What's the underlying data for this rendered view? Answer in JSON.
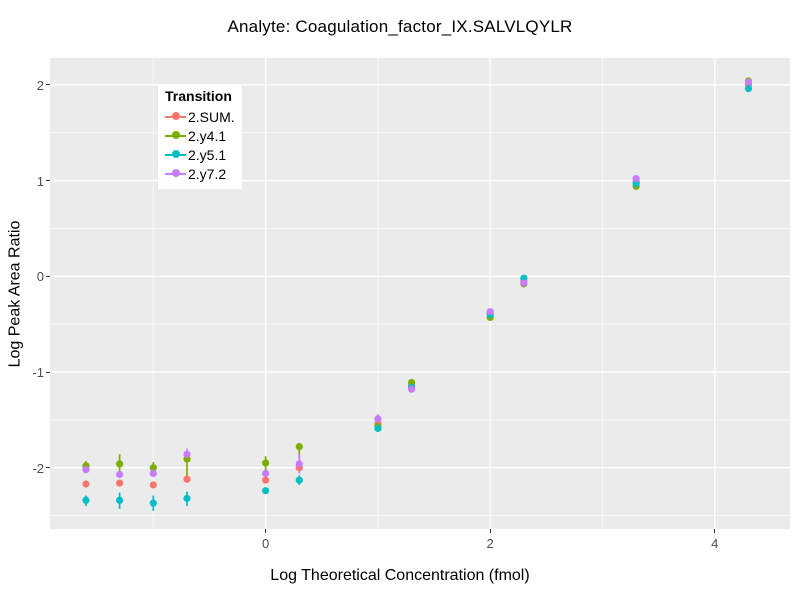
{
  "chart_data": {
    "type": "scatter",
    "title": "Analyte: Coagulation_factor_IX.SALVLQYLR",
    "xlabel": "Log Theoretical Concentration (fmol)",
    "ylabel": "Log Peak Area Ratio",
    "xlim": [
      -1.92,
      4.67
    ],
    "ylim": [
      -2.64,
      2.28
    ],
    "x_ticks": [
      0,
      2,
      4
    ],
    "y_ticks": [
      -2,
      -1,
      0,
      1,
      2
    ],
    "x_minor_ticks": [
      -1,
      1,
      3
    ],
    "y_minor_ticks": [
      -2.5,
      -1.5,
      -0.5,
      0.5,
      1.5
    ],
    "grid": true,
    "panel_bg": "#EBEBEB",
    "grid_major_color": "#FFFFFF",
    "grid_minor_color": "#F7F7F7",
    "tick_label_color": "#4D4D4D",
    "legend": {
      "title": "Transition",
      "position": "inset-top-left"
    },
    "series": [
      {
        "name": "2.SUM.",
        "color": "#F8766D",
        "points": [
          {
            "x": -1.6,
            "y": -2.17
          },
          {
            "x": -1.3,
            "y": -2.16
          },
          {
            "x": -1.0,
            "y": -2.18
          },
          {
            "x": -0.7,
            "y": -2.12
          },
          {
            "x": 0.0,
            "y": -2.13
          },
          {
            "x": 0.3,
            "y": -2.0
          },
          {
            "x": 1.0,
            "y": -1.54
          },
          {
            "x": 1.3,
            "y": -1.14
          },
          {
            "x": 2.0,
            "y": -0.38
          },
          {
            "x": 2.3,
            "y": -0.05
          },
          {
            "x": 3.3,
            "y": 0.99
          },
          {
            "x": 4.3,
            "y": 2.0
          }
        ]
      },
      {
        "name": "2.y4.1",
        "color": "#7CAE00",
        "points": [
          {
            "x": -1.6,
            "y": -1.98,
            "ymin": -2.04,
            "ymax": -1.93
          },
          {
            "x": -1.3,
            "y": -1.96,
            "ymin": -2.05,
            "ymax": -1.86
          },
          {
            "x": -1.0,
            "y": -2.0,
            "ymin": -2.07,
            "ymax": -1.94
          },
          {
            "x": -0.7,
            "y": -1.91,
            "ymin": -2.09,
            "ymax": -1.87
          },
          {
            "x": 0.0,
            "y": -1.95,
            "ymin": -2.03,
            "ymax": -1.88
          },
          {
            "x": 0.3,
            "y": -1.78,
            "ymin": -1.99,
            "ymax": -1.74
          },
          {
            "x": 1.0,
            "y": -1.57
          },
          {
            "x": 1.3,
            "y": -1.11
          },
          {
            "x": 2.0,
            "y": -0.43
          },
          {
            "x": 2.3,
            "y": -0.08
          },
          {
            "x": 3.3,
            "y": 0.94
          },
          {
            "x": 4.3,
            "y": 2.04
          }
        ]
      },
      {
        "name": "2.y5.1",
        "color": "#00BFC4",
        "points": [
          {
            "x": -1.6,
            "y": -2.34,
            "ymin": -2.4,
            "ymax": -2.29
          },
          {
            "x": -1.3,
            "y": -2.34,
            "ymin": -2.43,
            "ymax": -2.26
          },
          {
            "x": -1.0,
            "y": -2.37,
            "ymin": -2.45,
            "ymax": -2.29
          },
          {
            "x": -0.7,
            "y": -2.32,
            "ymin": -2.4,
            "ymax": -2.25
          },
          {
            "x": 0.0,
            "y": -2.24
          },
          {
            "x": 0.3,
            "y": -2.13,
            "ymin": -2.18,
            "ymax": -2.08
          },
          {
            "x": 1.0,
            "y": -1.59
          },
          {
            "x": 1.3,
            "y": -1.16
          },
          {
            "x": 2.0,
            "y": -0.4
          },
          {
            "x": 2.3,
            "y": -0.02
          },
          {
            "x": 3.3,
            "y": 0.97
          },
          {
            "x": 4.3,
            "y": 1.96
          }
        ]
      },
      {
        "name": "2.y7.2",
        "color": "#C77CFF",
        "points": [
          {
            "x": -1.6,
            "y": -2.02
          },
          {
            "x": -1.3,
            "y": -2.07
          },
          {
            "x": -1.0,
            "y": -2.06
          },
          {
            "x": -0.7,
            "y": -1.86,
            "ymin": -1.93,
            "ymax": -1.8
          },
          {
            "x": 0.0,
            "y": -2.06
          },
          {
            "x": 0.3,
            "y": -1.96,
            "ymin": -2.06,
            "ymax": -1.86
          },
          {
            "x": 1.0,
            "y": -1.49,
            "ymin": -1.55,
            "ymax": -1.44
          },
          {
            "x": 1.3,
            "y": -1.18
          },
          {
            "x": 2.0,
            "y": -0.37
          },
          {
            "x": 2.3,
            "y": -0.07
          },
          {
            "x": 3.3,
            "y": 1.02
          },
          {
            "x": 4.3,
            "y": 2.03
          }
        ]
      }
    ]
  }
}
